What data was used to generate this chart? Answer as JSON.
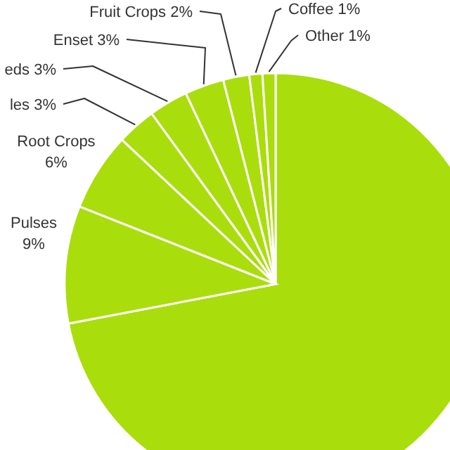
{
  "chart_data": {
    "type": "pie",
    "categories": [
      null,
      "Pulses",
      "Root Crops",
      "les",
      "eds",
      "Enset",
      "Fruit Crops",
      "Coffee",
      "Other"
    ],
    "values": [
      72,
      9,
      6,
      3,
      3,
      3,
      2,
      1,
      1
    ],
    "value_labels": [
      null,
      "9%",
      "6%",
      "3%",
      "3%",
      "3%",
      "2%",
      "1%",
      "1%"
    ],
    "colors": [
      "#aadd0c",
      "#aadd0c",
      "#aadd0c",
      "#aadd0c",
      "#aadd0c",
      "#aadd0c",
      "#aadd0c",
      "#aadd0c",
      "#aadd0c"
    ]
  }
}
